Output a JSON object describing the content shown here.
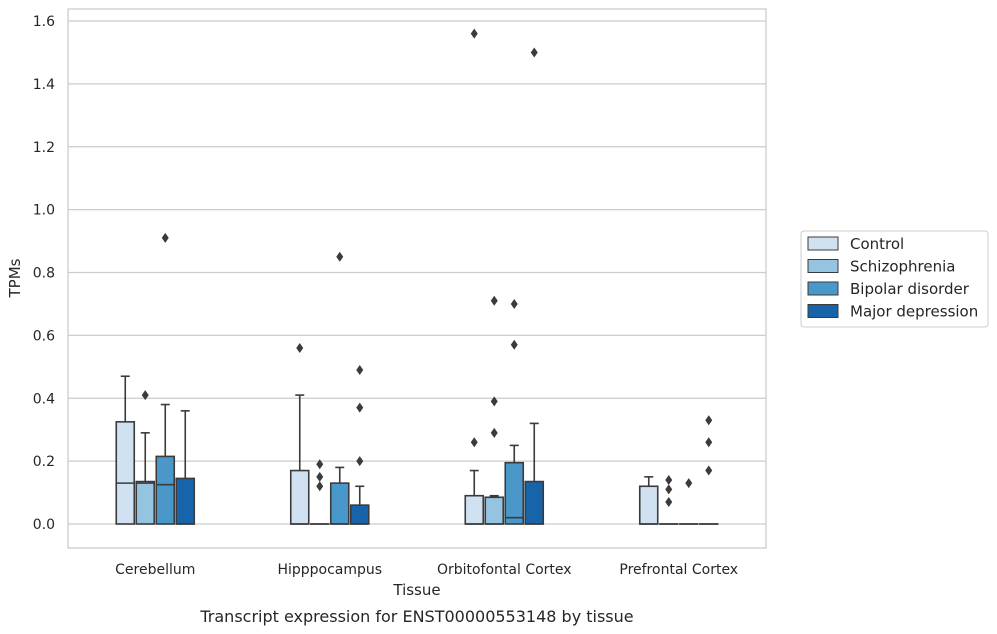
{
  "caption": "Transcript expression for ENST00000553148 by tissue",
  "chart_data": {
    "type": "box",
    "xlabel": "Tissue",
    "ylabel": "TPMs",
    "ylim": [
      -0.08,
      1.65
    ],
    "yticks": [
      0.0,
      0.2,
      0.4,
      0.6,
      0.8,
      1.0,
      1.2,
      1.4,
      1.6
    ],
    "ytick_labels": [
      "0.0",
      "0.2",
      "0.4",
      "0.6",
      "0.8",
      "1.0",
      "1.2",
      "1.4",
      "1.6"
    ],
    "grid": "horizontal",
    "legend_position": "right",
    "categories": [
      "Cerebellum",
      "Hipppocampus",
      "Orbitofontal Cortex",
      "Prefrontal Cortex"
    ],
    "series": [
      {
        "name": "Control",
        "color": "#d0e1f2",
        "boxes": [
          {
            "q1": 0.0,
            "median": 0.13,
            "q3": 0.325,
            "whisker_low": 0.0,
            "whisker_high": 0.47,
            "outliers": []
          },
          {
            "q1": 0.0,
            "median": 0.0,
            "q3": 0.17,
            "whisker_low": 0.0,
            "whisker_high": 0.41,
            "outliers": [
              0.56
            ]
          },
          {
            "q1": 0.0,
            "median": 0.0,
            "q3": 0.09,
            "whisker_low": 0.0,
            "whisker_high": 0.17,
            "outliers": [
              0.26,
              1.56
            ]
          },
          {
            "q1": 0.0,
            "median": 0.0,
            "q3": 0.12,
            "whisker_low": 0.0,
            "whisker_high": 0.15,
            "outliers": []
          }
        ]
      },
      {
        "name": "Schizophrenia",
        "color": "#94c4df",
        "boxes": [
          {
            "q1": 0.0,
            "median": 0.13,
            "q3": 0.135,
            "whisker_low": 0.0,
            "whisker_high": 0.29,
            "outliers": [
              0.41
            ]
          },
          {
            "q1": 0.0,
            "median": 0.0,
            "q3": 0.0,
            "whisker_low": 0.0,
            "whisker_high": 0.0,
            "outliers": [
              0.12,
              0.15,
              0.19
            ]
          },
          {
            "q1": 0.0,
            "median": 0.0,
            "q3": 0.085,
            "whisker_low": 0.0,
            "whisker_high": 0.09,
            "outliers": [
              0.29,
              0.39,
              0.71
            ]
          },
          {
            "q1": 0.0,
            "median": 0.0,
            "q3": 0.0,
            "whisker_low": 0.0,
            "whisker_high": 0.0,
            "outliers": [
              0.07,
              0.11,
              0.14
            ]
          }
        ]
      },
      {
        "name": "Bipolar disorder",
        "color": "#4a98c9",
        "boxes": [
          {
            "q1": 0.0,
            "median": 0.125,
            "q3": 0.215,
            "whisker_low": 0.0,
            "whisker_high": 0.38,
            "outliers": [
              0.91
            ]
          },
          {
            "q1": 0.0,
            "median": 0.0,
            "q3": 0.13,
            "whisker_low": 0.0,
            "whisker_high": 0.18,
            "outliers": [
              0.85
            ]
          },
          {
            "q1": 0.0,
            "median": 0.02,
            "q3": 0.195,
            "whisker_low": 0.0,
            "whisker_high": 0.25,
            "outliers": [
              0.57,
              0.7
            ]
          },
          {
            "q1": 0.0,
            "median": 0.0,
            "q3": 0.0,
            "whisker_low": 0.0,
            "whisker_high": 0.0,
            "outliers": [
              0.13
            ]
          }
        ]
      },
      {
        "name": "Major depression",
        "color": "#1764ab",
        "boxes": [
          {
            "q1": 0.0,
            "median": 0.0,
            "q3": 0.145,
            "whisker_low": 0.0,
            "whisker_high": 0.36,
            "outliers": []
          },
          {
            "q1": 0.0,
            "median": 0.0,
            "q3": 0.06,
            "whisker_low": 0.0,
            "whisker_high": 0.12,
            "outliers": [
              0.2,
              0.37,
              0.49
            ]
          },
          {
            "q1": 0.0,
            "median": 0.0,
            "q3": 0.135,
            "whisker_low": 0.0,
            "whisker_high": 0.32,
            "outliers": [
              1.5
            ]
          },
          {
            "q1": 0.0,
            "median": 0.0,
            "q3": 0.0,
            "whisker_low": 0.0,
            "whisker_high": 0.0,
            "outliers": [
              0.17,
              0.26,
              0.33
            ]
          }
        ]
      }
    ]
  }
}
